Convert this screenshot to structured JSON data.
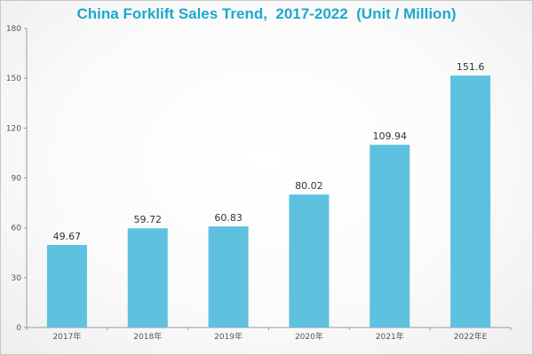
{
  "chart_data": {
    "type": "bar",
    "title": "China Forklift Sales Trend,  2017-2022  (Unit / Million)",
    "categories": [
      "2017年",
      "2018年",
      "2019年",
      "2020年",
      "2021年",
      "2022年E"
    ],
    "values": [
      49.67,
      59.72,
      60.83,
      80.02,
      109.94,
      151.6
    ],
    "data_labels": [
      "49.67",
      "59.72",
      "60.83",
      "80.02",
      "109.94",
      "151.6"
    ],
    "ylim": [
      0,
      180
    ],
    "yticks": [
      0,
      30,
      60,
      90,
      120,
      150,
      180
    ],
    "grid": false,
    "bar_color": "#5ec1e0",
    "title_color": "#1ea7cf"
  }
}
